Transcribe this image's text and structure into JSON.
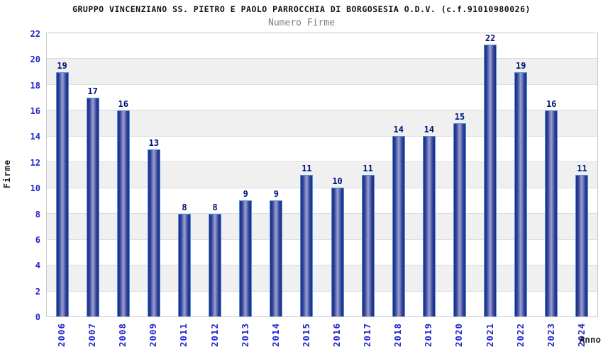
{
  "chart_data": {
    "type": "bar",
    "title": "GRUPPO VINCENZIANO SS. PIETRO E PAOLO PARROCCHIA DI BORGOSESIA O.D.V. (c.f.91010980026)",
    "subtitle": "Numero Firme",
    "xlabel": "Anno",
    "ylabel": "Firme",
    "categories": [
      "2006",
      "2007",
      "2008",
      "2009",
      "2011",
      "2012",
      "2013",
      "2014",
      "2015",
      "2016",
      "2017",
      "2018",
      "2019",
      "2020",
      "2021",
      "2022",
      "2023",
      "2024"
    ],
    "values": [
      19,
      17,
      16,
      13,
      8,
      8,
      9,
      9,
      11,
      10,
      11,
      14,
      14,
      15,
      22,
      19,
      16,
      11
    ],
    "ylim": [
      0,
      22
    ],
    "yticks": [
      0,
      2,
      4,
      6,
      8,
      10,
      12,
      14,
      16,
      18,
      20,
      22
    ],
    "grid": "alternating horizontal bands every 2 units, gray on 2-4/6-8/10-12/14-16/18-20",
    "legend": "none",
    "colors": {
      "tick_label": "#2323cf",
      "value_label": "#001078",
      "bar_border": "#4d94e8",
      "bar_edge": "#1f2d80",
      "bar_mid": "#2e3c94",
      "bar_center": "#9aa3d2",
      "band_gray": "#f0f0f0",
      "plot_border": "#c9c9c9",
      "title": "#111111",
      "subtitle": "#7d7d7d",
      "axis_title": "#222222"
    }
  }
}
